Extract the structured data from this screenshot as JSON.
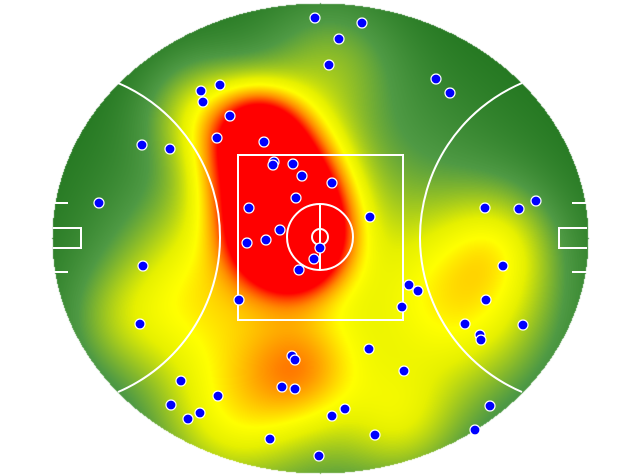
{
  "colors": {
    "background": "#ffffff",
    "cold": "#136a13",
    "mid": "#4f9a44",
    "warm": "#ffff00",
    "hot": "#ff0000",
    "lines": "#ffffff",
    "points": "#0000ff"
  },
  "legend": null
}
